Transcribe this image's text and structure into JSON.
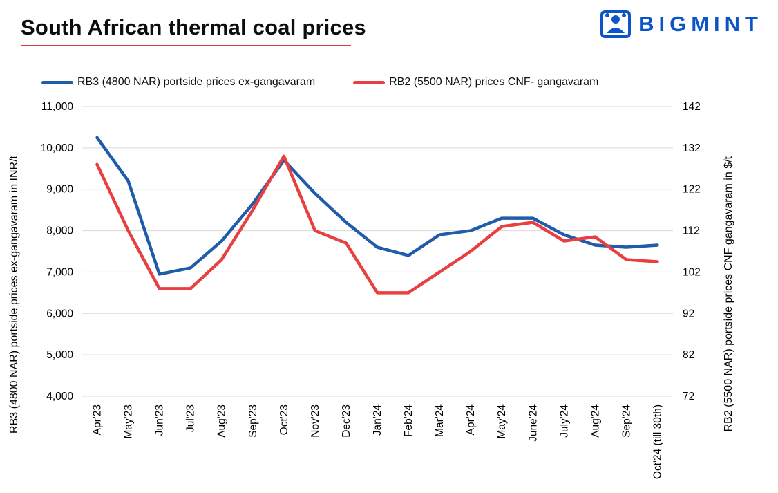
{
  "header": {
    "title": "South African thermal coal prices",
    "underline_color": "#e03a3a",
    "logo_text": "BIGMINT",
    "logo_color": "#0b55c9"
  },
  "chart_data": {
    "type": "line",
    "title": "South African thermal coal prices",
    "grid": true,
    "legend_position": "top",
    "categories": [
      "Apr'23",
      "May'23",
      "Jun'23",
      "Jul'23",
      "Aug'23",
      "Sep'23",
      "Oct'23",
      "Nov'23",
      "Dec'23",
      "Jan'24",
      "Feb'24",
      "Mar'24",
      "Apr'24",
      "May'24",
      "June'24",
      "July'24",
      "Aug'24",
      "Sep'24",
      "Oct'24 (till 30th)"
    ],
    "series": [
      {
        "id": "rb3-line",
        "name": "RB3 (4800 NAR) portside prices ex-gangavaram",
        "axis": "left",
        "color": "#1f5ca9",
        "values": [
          10250,
          9200,
          6950,
          7100,
          7750,
          8650,
          9700,
          8900,
          8200,
          7600,
          7400,
          7900,
          8000,
          8300,
          8300,
          7900,
          7650,
          7600,
          7650
        ]
      },
      {
        "id": "rb2-line",
        "name": "RB2 (5500 NAR) prices CNF- gangavaram",
        "axis": "right",
        "color": "#e84040",
        "values": [
          128,
          112,
          98,
          98,
          105,
          117,
          130,
          112,
          109,
          97,
          97,
          102,
          107,
          113,
          114,
          109.5,
          110.5,
          105,
          104.5
        ]
      }
    ],
    "left_axis": {
      "label": "RB3 (4800 NAR)  portside prices ex-gangavaram  in INR/t",
      "min": 4000,
      "max": 11000,
      "step": 1000
    },
    "right_axis": {
      "label": "RB2 (5500 NAR)  portside prices CNF  gangavaram  in $/t",
      "min": 72,
      "max": 142,
      "step": 10
    },
    "gridline_color": "#d9d9d9"
  }
}
